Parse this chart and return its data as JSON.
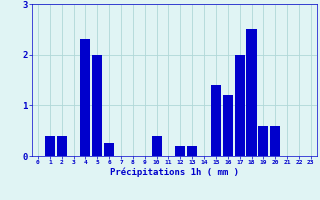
{
  "hours": [
    0,
    1,
    2,
    3,
    4,
    5,
    6,
    7,
    8,
    9,
    10,
    11,
    12,
    13,
    14,
    15,
    16,
    17,
    18,
    19,
    20,
    21,
    22,
    23
  ],
  "values": [
    0,
    0.4,
    0.4,
    0,
    2.3,
    2.0,
    0.25,
    0,
    0,
    0,
    0.4,
    0,
    0.2,
    0.2,
    0,
    1.4,
    1.2,
    2.0,
    2.5,
    0.6,
    0.6,
    0,
    0,
    0
  ],
  "bar_color": "#0000cc",
  "background_color": "#e0f4f4",
  "grid_color": "#b0d8d8",
  "xlabel": "Précipitations 1h ( mm )",
  "xlabel_color": "#0000cc",
  "tick_color": "#0000cc",
  "ylim": [
    0,
    3
  ],
  "yticks": [
    0,
    1,
    2,
    3
  ],
  "figsize": [
    3.2,
    2.0
  ],
  "dpi": 100
}
